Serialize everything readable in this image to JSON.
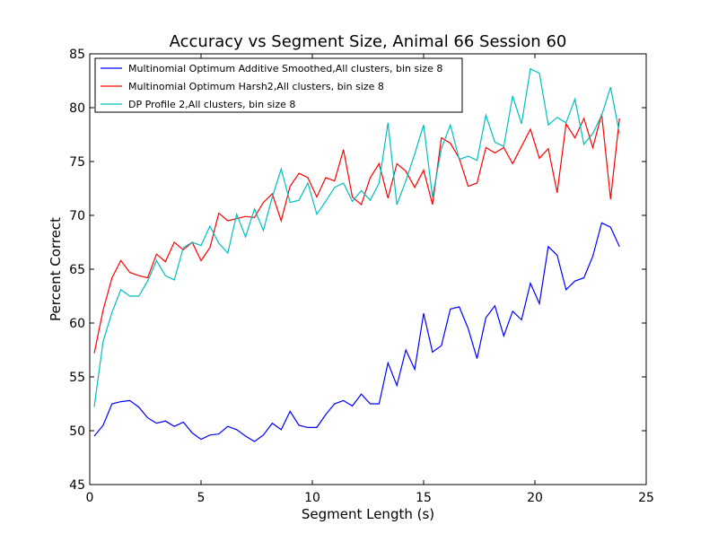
{
  "chart_data": {
    "type": "line",
    "title": "Accuracy vs Segment Size, Animal 66 Session 60",
    "xlabel": "Segment Length (s)",
    "ylabel": "Percent Correct",
    "xlim": [
      0,
      25
    ],
    "ylim": [
      45,
      85
    ],
    "xticks": [
      0,
      5,
      10,
      15,
      20,
      25
    ],
    "yticks": [
      45,
      50,
      55,
      60,
      65,
      70,
      75,
      80,
      85
    ],
    "grid": false,
    "legend_position": "top-left",
    "x": [
      0.2,
      0.6,
      1.0,
      1.4,
      1.8,
      2.2,
      2.6,
      3.0,
      3.4,
      3.8,
      4.2,
      4.6,
      5.0,
      5.4,
      5.8,
      6.2,
      6.6,
      7.0,
      7.4,
      7.8,
      8.2,
      8.6,
      9.0,
      9.4,
      9.8,
      10.2,
      10.6,
      11.0,
      11.4,
      11.8,
      12.2,
      12.6,
      13.0,
      13.4,
      13.8,
      14.2,
      14.6,
      15.0,
      15.4,
      15.8,
      16.2,
      16.6,
      17.0,
      17.4,
      17.8,
      18.2,
      18.6,
      19.0,
      19.4,
      19.8,
      20.2,
      20.6,
      21.0,
      21.4,
      21.8,
      22.2,
      22.6,
      23.0,
      23.4,
      23.8
    ],
    "series": [
      {
        "name": "Multinomial Optimum Additive Smoothed,All clusters, bin size 8",
        "color": "#0000ff",
        "values": [
          49.5,
          50.5,
          52.5,
          52.7,
          52.8,
          52.2,
          51.2,
          50.7,
          50.9,
          50.4,
          50.8,
          49.8,
          49.2,
          49.6,
          49.7,
          50.4,
          50.1,
          49.5,
          49.0,
          49.6,
          50.7,
          50.1,
          51.8,
          50.5,
          50.3,
          50.3,
          51.5,
          52.5,
          52.8,
          52.3,
          53.4,
          52.5,
          52.5,
          56.3,
          54.2,
          57.5,
          55.7,
          60.9,
          57.3,
          57.9,
          61.3,
          61.5,
          59.5,
          56.7,
          60.5,
          61.6,
          58.8,
          61.1,
          60.3,
          63.7,
          61.8,
          67.1,
          66.3,
          63.1,
          63.9,
          64.2,
          66.2,
          69.3,
          68.9,
          67.1
        ]
      },
      {
        "name": "Multinomial Optimum Harsh2,All clusters, bin size 8",
        "color": "#ff0000",
        "values": [
          57.2,
          61.2,
          64.2,
          65.8,
          64.7,
          64.4,
          64.2,
          66.4,
          65.7,
          67.5,
          66.8,
          67.5,
          65.8,
          67.0,
          70.2,
          69.5,
          69.7,
          69.9,
          69.8,
          71.2,
          72.0,
          69.5,
          72.7,
          73.9,
          73.5,
          71.7,
          73.5,
          73.2,
          76.1,
          71.7,
          71.0,
          73.5,
          74.8,
          71.6,
          74.8,
          74.1,
          72.6,
          74.2,
          71.0,
          77.2,
          76.7,
          75.3,
          72.7,
          73.0,
          76.3,
          75.8,
          76.3,
          74.8,
          76.4,
          78.0,
          75.3,
          76.2,
          72.1,
          78.5,
          77.2,
          79.0,
          76.3,
          79.4,
          71.5,
          79.0
        ]
      },
      {
        "name": "DP Profile 2,All clusters, bin size 8",
        "color": "#00bfbf",
        "values": [
          52.2,
          58.3,
          61.0,
          63.1,
          62.5,
          62.5,
          63.9,
          65.8,
          64.4,
          64.0,
          67.0,
          67.5,
          67.2,
          69.0,
          67.4,
          66.5,
          70.1,
          68.0,
          70.6,
          68.6,
          71.7,
          74.3,
          71.2,
          71.4,
          73.0,
          70.1,
          71.3,
          72.6,
          73.0,
          71.3,
          72.3,
          71.4,
          73.0,
          78.6,
          71.0,
          73.2,
          75.7,
          78.4,
          71.7,
          76.2,
          78.4,
          75.2,
          75.5,
          75.1,
          79.3,
          76.8,
          76.4,
          81.1,
          78.5,
          83.6,
          83.2,
          78.4,
          79.1,
          78.6,
          80.8,
          76.6,
          77.6,
          79.3,
          81.9,
          77.6
        ]
      }
    ]
  }
}
